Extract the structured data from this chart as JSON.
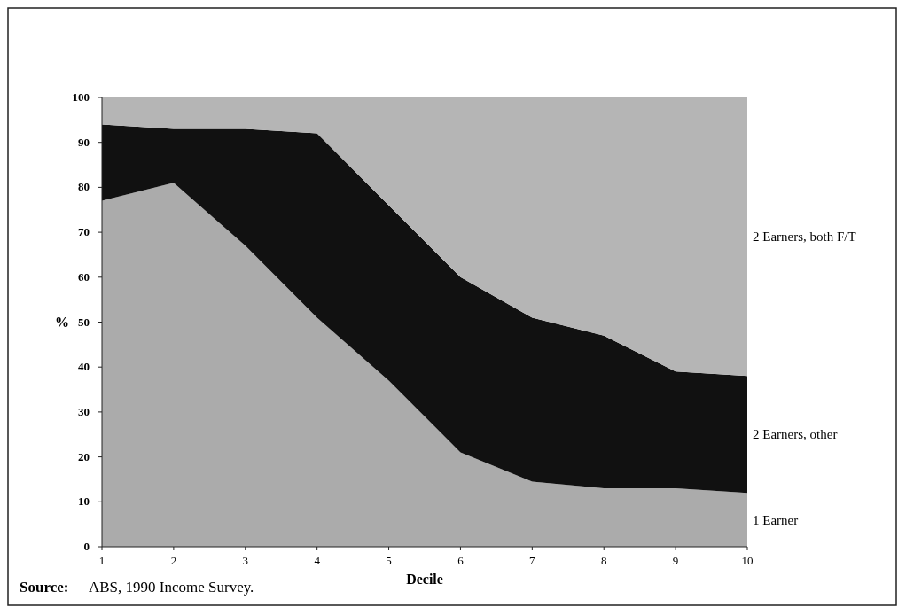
{
  "chart_data": {
    "type": "area",
    "stacked": true,
    "xlabel": "Decile",
    "ylabel": "%",
    "x": [
      1,
      2,
      3,
      4,
      5,
      6,
      7,
      8,
      9,
      10
    ],
    "xlim": [
      1,
      10
    ],
    "xticks": [
      1,
      2,
      3,
      4,
      5,
      6,
      7,
      8,
      9,
      10
    ],
    "ylim": [
      0,
      100
    ],
    "yticks": [
      0,
      10,
      20,
      30,
      40,
      50,
      60,
      70,
      80,
      90,
      100
    ],
    "series": [
      {
        "name": "1 Earner",
        "color": "#ababab",
        "values": [
          77,
          81,
          67,
          51,
          37,
          21,
          14.5,
          13,
          13,
          12
        ]
      },
      {
        "name": "2 Earners, other",
        "color": "#111111",
        "values": [
          17,
          12,
          26,
          41,
          39,
          39,
          36.5,
          34,
          26,
          26
        ]
      },
      {
        "name": "2 Earners, both F/T",
        "color": "#b5b5b5",
        "values": [
          6,
          7,
          7,
          8,
          24,
          40,
          49,
          53,
          61,
          62
        ]
      }
    ],
    "annotations": [
      "Source: ABS, 1990 Income Survey."
    ]
  }
}
